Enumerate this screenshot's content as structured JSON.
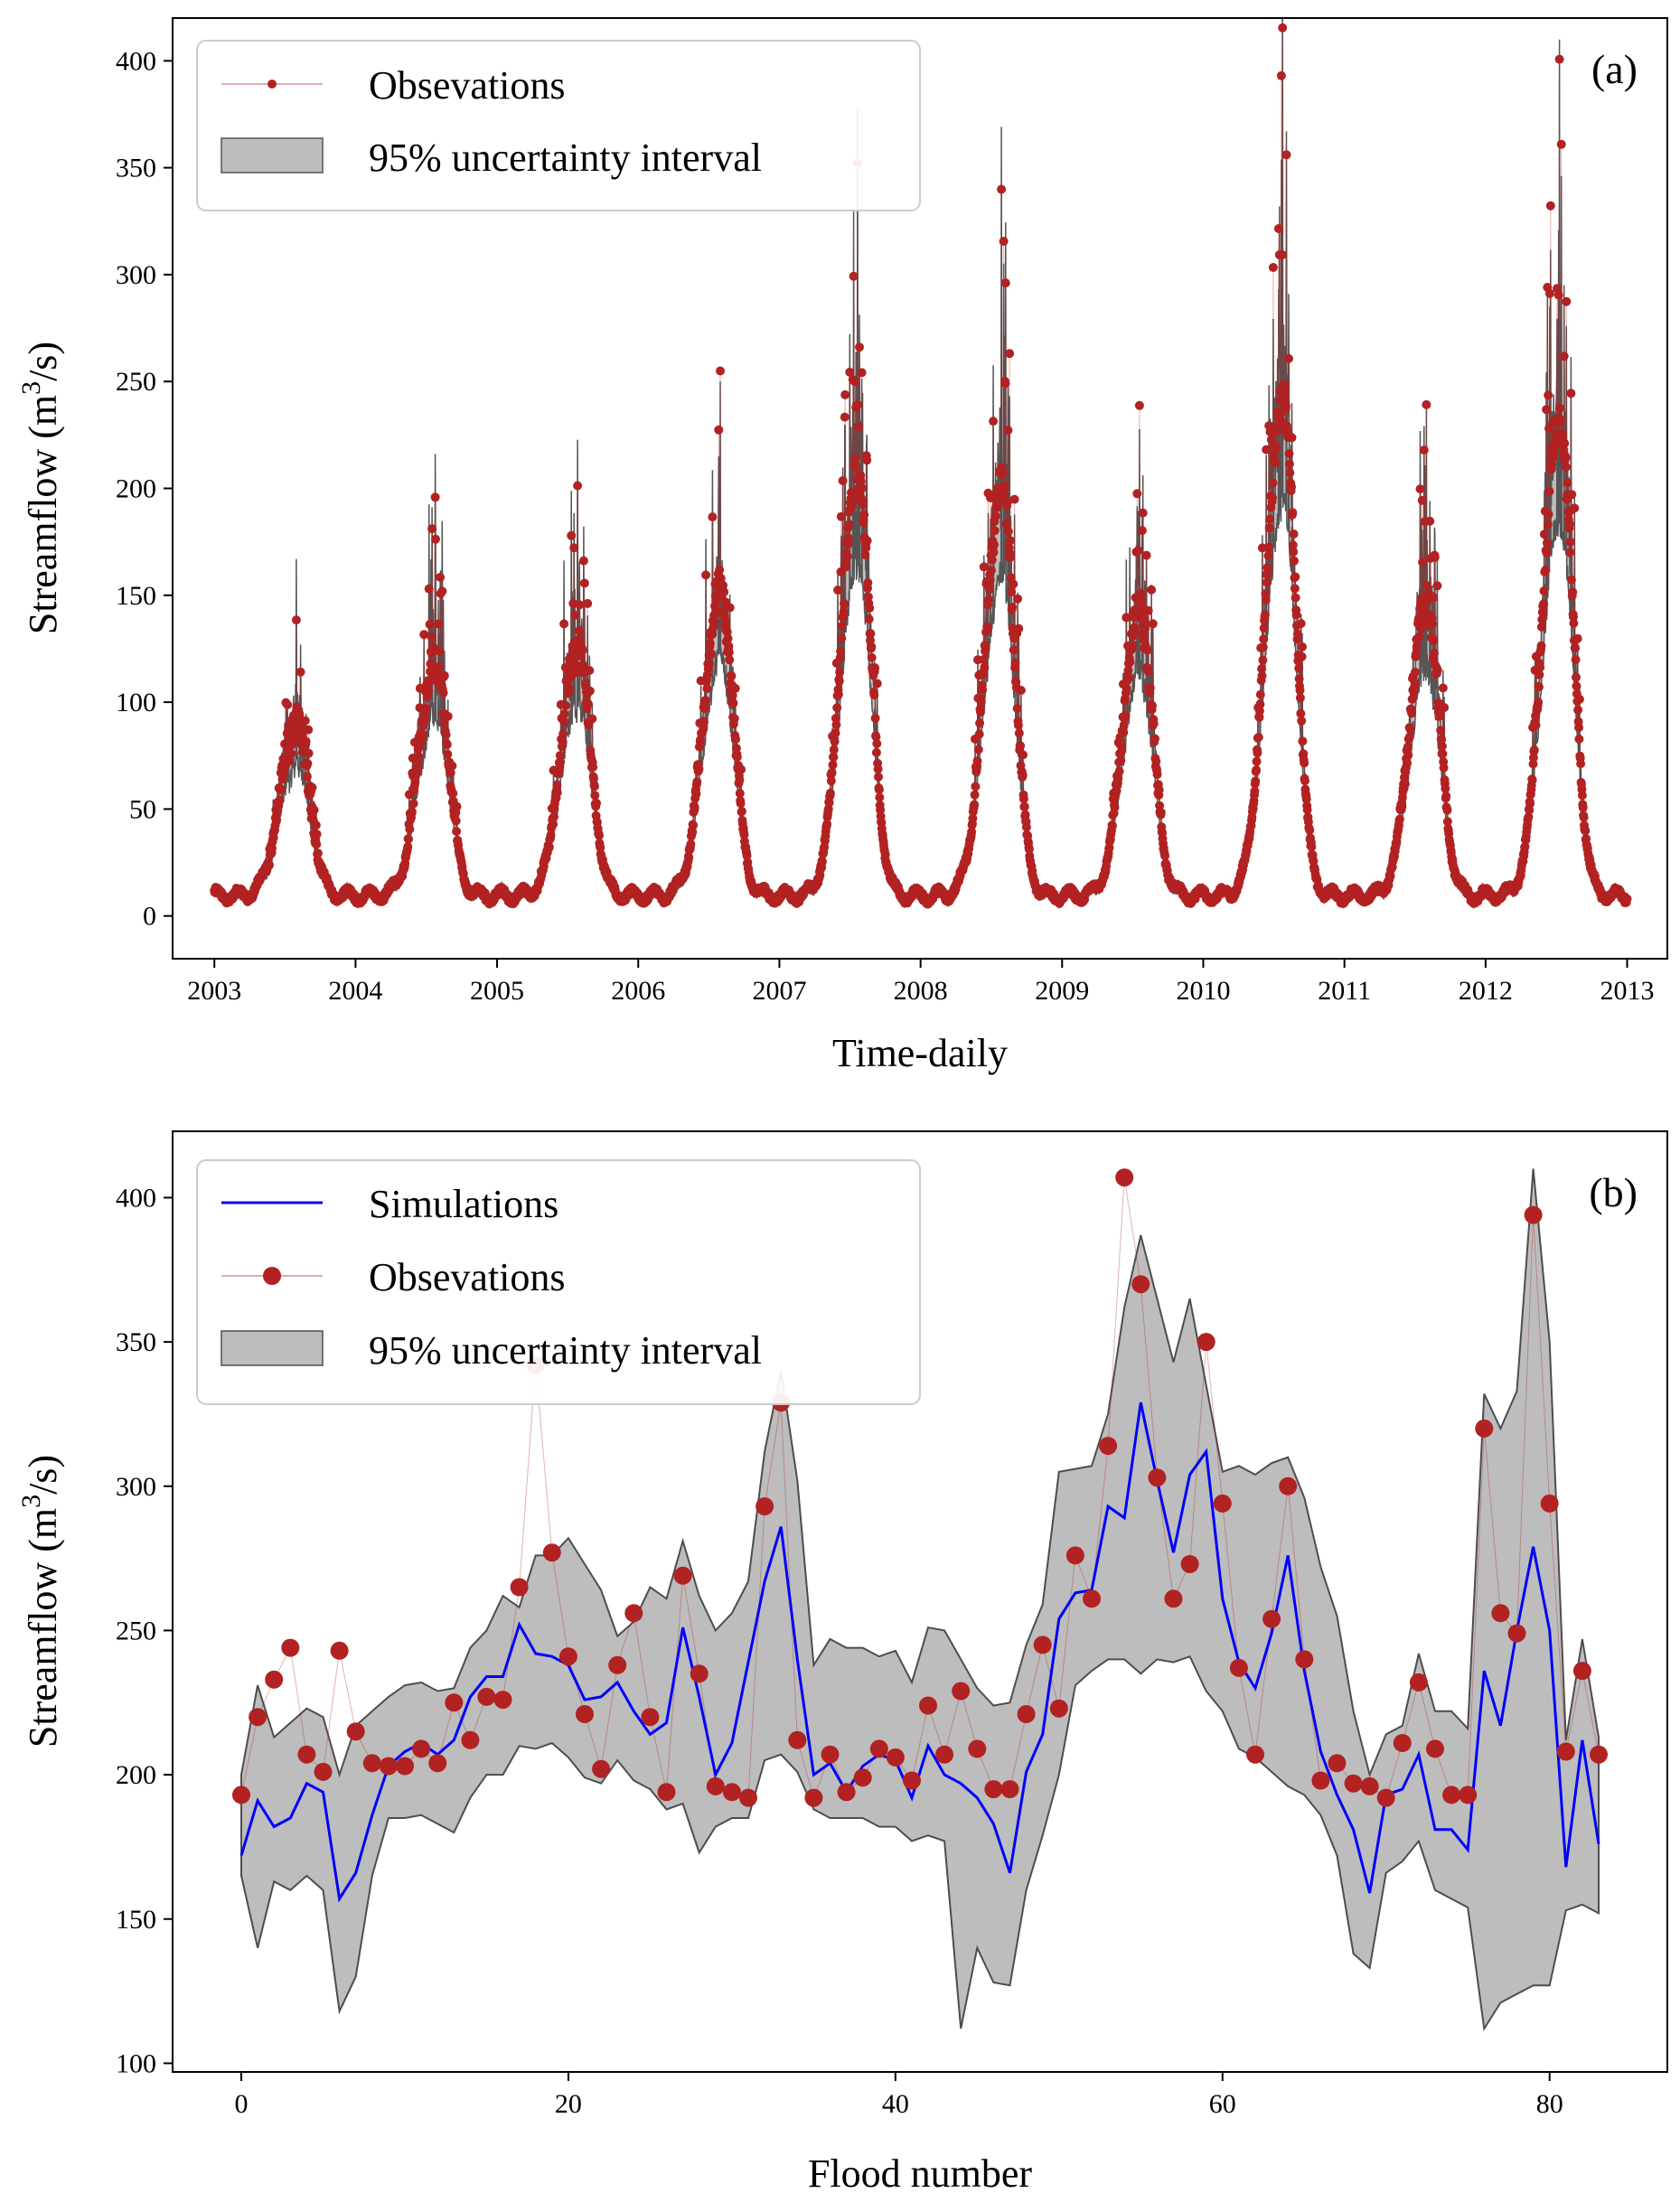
{
  "colors": {
    "observations": "#b22222",
    "simulations": "#0000ff",
    "band_fill": "#bdbdbd",
    "band_edge": "#4d4d4d"
  },
  "chart_data": [
    {
      "type": "line",
      "panel_label": "(a)",
      "xlabel": "Time-daily",
      "ylabel": "Streamflow (m³/s)",
      "ylabel_base": "Streamflow (m",
      "ylabel_sup": "3",
      "ylabel_end": "/s)",
      "x_ticks": [
        "2003",
        "2004",
        "2005",
        "2006",
        "2007",
        "2008",
        "2009",
        "2010",
        "2011",
        "2012",
        "2013"
      ],
      "xlim": [
        "2002-09-15",
        "2013-04-15"
      ],
      "ylim": [
        -20,
        420
      ],
      "y_ticks": [
        0,
        50,
        100,
        150,
        200,
        250,
        300,
        350,
        400
      ],
      "grid": false,
      "legend": {
        "placement": "top-left",
        "entries": [
          "Obsevations",
          "95% uncertainty interval"
        ]
      },
      "series": [
        {
          "name": "Obsevations",
          "kind": "line+markers",
          "color": "#b22222"
        },
        {
          "name": "95% uncertainty interval",
          "kind": "band",
          "color": "#bdbdbd"
        }
      ],
      "baseflow": 8,
      "annual_floods": [
        {
          "year": 2003,
          "peak_date": "2003-08-01",
          "peak": 130,
          "sim_peak": 167
        },
        {
          "year": 2004,
          "peak_date": "2004-07-25",
          "peak": 183,
          "sim_peak": 197
        },
        {
          "year": 2005,
          "peak_date": "2005-07-28",
          "peak": 193,
          "sim_peak": 213
        },
        {
          "year": 2006,
          "peak_date": "2006-08-01",
          "peak": 244,
          "sim_peak": 211
        },
        {
          "year": 2007,
          "peak_date": "2007-07-22",
          "peak": 342,
          "sim_peak": 276
        },
        {
          "year": 2008,
          "peak_date": "2008-07-28",
          "peak": 329,
          "sim_peak": 305
        },
        {
          "year": 2009,
          "peak_date": "2009-07-20",
          "peak": 229,
          "sim_peak": 220
        },
        {
          "year": 2010,
          "peak_date": "2010-07-25",
          "peak": 407,
          "sim_peak": 387
        },
        {
          "year": 2011,
          "peak_date": "2011-08-01",
          "peak": 232,
          "sim_peak": 228
        },
        {
          "year": 2012,
          "peak_date": "2012-07-10",
          "peak": 394,
          "sim_peak": 410
        }
      ]
    },
    {
      "type": "line",
      "panel_label": "(b)",
      "xlabel": "Flood number",
      "ylabel": "Streamflow (m³/s)",
      "ylabel_base": "Streamflow (m",
      "ylabel_sup": "3",
      "ylabel_end": "/s)",
      "xlim": [
        -4.2,
        87.2
      ],
      "ylim": [
        97,
        423
      ],
      "x_ticks": [
        0,
        20,
        40,
        60,
        80
      ],
      "y_ticks": [
        100,
        150,
        200,
        250,
        300,
        350,
        400
      ],
      "grid": false,
      "legend": {
        "placement": "top-left",
        "entries": [
          "Simulations",
          "Obsevations",
          "95% uncertainty interval"
        ]
      },
      "x": [
        0,
        1,
        2,
        3,
        4,
        5,
        6,
        7,
        8,
        9,
        10,
        11,
        12,
        13,
        14,
        15,
        16,
        17,
        18,
        19,
        20,
        21,
        22,
        23,
        24,
        25,
        26,
        27,
        28,
        29,
        30,
        31,
        32,
        33,
        34,
        35,
        36,
        37,
        38,
        39,
        40,
        41,
        42,
        43,
        44,
        45,
        46,
        47,
        48,
        49,
        50,
        51,
        52,
        53,
        54,
        55,
        56,
        57,
        58,
        59,
        60,
        61,
        62,
        63,
        64,
        65,
        66,
        67,
        68,
        69,
        70,
        71,
        72,
        73,
        74,
        75,
        76,
        77,
        78,
        79,
        80,
        81,
        82,
        83
      ],
      "series": [
        {
          "name": "Simulations",
          "color": "#0000ff",
          "values": [
            172,
            191,
            182,
            185,
            197,
            194,
            157,
            166,
            186,
            203,
            208,
            211,
            207,
            212,
            227,
            234,
            234,
            252,
            242,
            241,
            238,
            226,
            227,
            232,
            222,
            214,
            218,
            251,
            227,
            200,
            211,
            239,
            267,
            286,
            240,
            200,
            204,
            194,
            203,
            207,
            205,
            192,
            210,
            200,
            197,
            192,
            183,
            166,
            201,
            214,
            254,
            263,
            264,
            293,
            289,
            329,
            302,
            277,
            304,
            312,
            261,
            239,
            230,
            249,
            276,
            236,
            208,
            193,
            181,
            159,
            193,
            195,
            207,
            181,
            181,
            174,
            236,
            217,
            250,
            279,
            250,
            168,
            212,
            176
          ]
        },
        {
          "name": "Obsevations",
          "color": "#b22222",
          "values": [
            193,
            220,
            233,
            244,
            207,
            201,
            243,
            215,
            204,
            203,
            203,
            209,
            204,
            225,
            212,
            227,
            226,
            265,
            342,
            277,
            241,
            221,
            202,
            238,
            256,
            220,
            194,
            269,
            235,
            196,
            194,
            192,
            293,
            329,
            212,
            192,
            207,
            194,
            199,
            209,
            206,
            198,
            224,
            207,
            229,
            209,
            195,
            195,
            221,
            245,
            223,
            276,
            261,
            314,
            407,
            370,
            303,
            261,
            273,
            350,
            294,
            237,
            207,
            254,
            300,
            240,
            198,
            204,
            197,
            196,
            192,
            211,
            232,
            209,
            193,
            193,
            320,
            256,
            249,
            394,
            294,
            208,
            236,
            207
          ]
        },
        {
          "name": "95% uncertainty interval",
          "kind": "band",
          "upper": [
            200,
            231,
            213,
            218,
            223,
            220,
            200,
            217,
            222,
            227,
            231,
            232,
            229,
            230,
            244,
            250,
            262,
            258,
            276,
            276,
            282,
            273,
            264,
            248,
            253,
            265,
            261,
            281,
            262,
            250,
            256,
            267,
            312,
            340,
            302,
            238,
            247,
            244,
            244,
            241,
            243,
            232,
            251,
            250,
            240,
            230,
            224,
            225,
            245,
            259,
            305,
            306,
            307,
            325,
            362,
            387,
            365,
            343,
            365,
            335,
            305,
            307,
            304,
            308,
            310,
            296,
            272,
            255,
            222,
            200,
            214,
            217,
            242,
            222,
            222,
            216,
            332,
            320,
            333,
            410,
            350,
            212,
            247,
            213
          ],
          "lower": [
            165,
            140,
            163,
            160,
            165,
            160,
            118,
            130,
            165,
            185,
            185,
            186,
            183,
            180,
            192,
            200,
            200,
            210,
            209,
            211,
            206,
            199,
            197,
            205,
            198,
            195,
            188,
            190,
            173,
            182,
            185,
            185,
            205,
            207,
            201,
            188,
            185,
            185,
            185,
            182,
            182,
            177,
            179,
            177,
            112,
            140,
            128,
            127,
            160,
            179,
            200,
            231,
            236,
            240,
            240,
            235,
            240,
            239,
            241,
            229,
            222,
            209,
            206,
            201,
            196,
            193,
            186,
            172,
            138,
            133,
            166,
            170,
            177,
            160,
            157,
            154,
            112,
            121,
            124,
            127,
            127,
            153,
            155,
            152
          ]
        }
      ]
    }
  ]
}
